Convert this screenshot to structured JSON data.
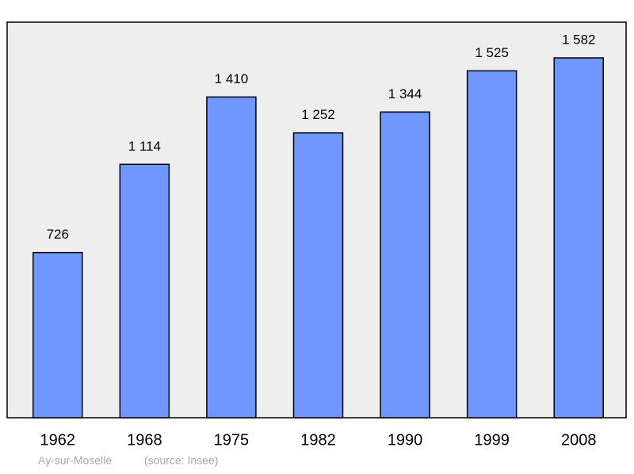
{
  "chart_data": {
    "type": "bar",
    "caption": "Ay-sur-Moselle",
    "source": "(source: Insee)",
    "categories": [
      "1962",
      "1968",
      "1975",
      "1982",
      "1990",
      "1999",
      "2008"
    ],
    "values": [
      726,
      1114,
      1410,
      1252,
      1344,
      1525,
      1582
    ],
    "value_labels": [
      "726",
      "1 114",
      "1 410",
      "1 252",
      "1 344",
      "1 525",
      "1 582"
    ],
    "color": "#7096ff"
  }
}
